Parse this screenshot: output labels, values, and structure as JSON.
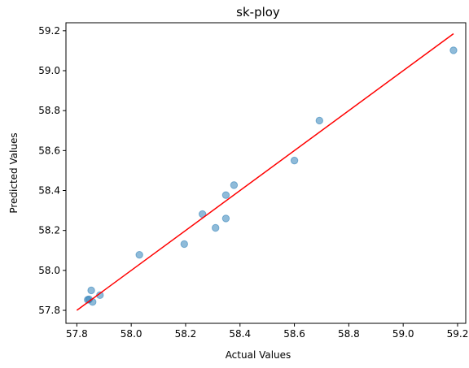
{
  "chart_data": {
    "type": "scatter",
    "title": "sk-ploy",
    "xlabel": "Actual Values",
    "ylabel": "Predicted Values",
    "xlim": [
      57.76,
      59.23
    ],
    "ylim": [
      57.735,
      59.24
    ],
    "x_ticks": [
      "57.8",
      "58.0",
      "58.2",
      "58.4",
      "58.6",
      "58.8",
      "59.0",
      "59.2"
    ],
    "y_ticks": [
      "57.8",
      "58.0",
      "58.2",
      "58.4",
      "58.6",
      "58.8",
      "59.0",
      "59.2"
    ],
    "grid": false,
    "points": [
      {
        "x": 57.84,
        "y": 57.853
      },
      {
        "x": 57.845,
        "y": 57.855
      },
      {
        "x": 57.853,
        "y": 57.9
      },
      {
        "x": 57.858,
        "y": 57.842
      },
      {
        "x": 57.885,
        "y": 57.876
      },
      {
        "x": 58.03,
        "y": 58.078
      },
      {
        "x": 58.195,
        "y": 58.132
      },
      {
        "x": 58.262,
        "y": 58.282
      },
      {
        "x": 58.31,
        "y": 58.213
      },
      {
        "x": 58.348,
        "y": 58.26
      },
      {
        "x": 58.348,
        "y": 58.377
      },
      {
        "x": 58.378,
        "y": 58.427
      },
      {
        "x": 58.6,
        "y": 58.55
      },
      {
        "x": 58.692,
        "y": 58.75
      },
      {
        "x": 59.185,
        "y": 59.102
      }
    ],
    "reference_line": {
      "from": [
        57.8,
        57.8
      ],
      "to": [
        59.185,
        59.185
      ],
      "color": "#ff0000"
    },
    "point_color": "#1f77b4",
    "point_alpha": 0.5
  }
}
